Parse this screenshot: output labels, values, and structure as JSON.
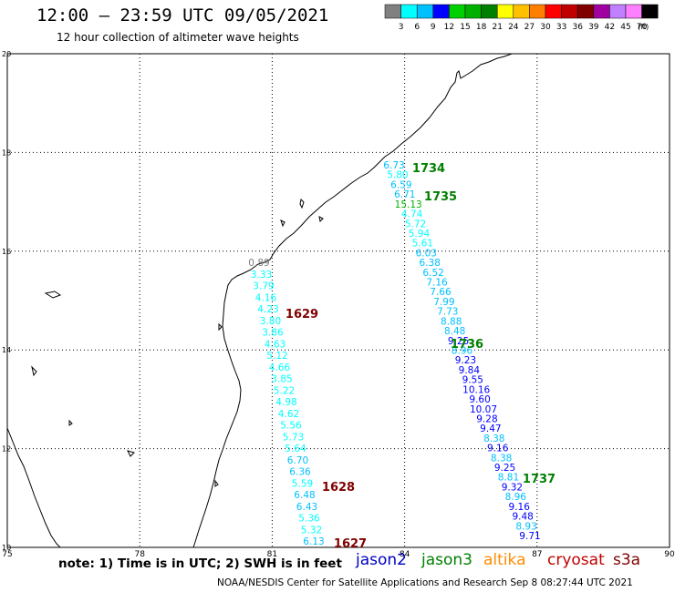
{
  "header": {
    "title": "12:00 – 23:59 UTC 09/05/2021",
    "subtitle": "12 hour collection of altimeter wave heights"
  },
  "legend": {
    "unit": "(ft)",
    "bins": [
      {
        "label": "3",
        "color": "#808080"
      },
      {
        "label": "6",
        "color": "#00ffff"
      },
      {
        "label": "9",
        "color": "#00c0ff"
      },
      {
        "label": "12",
        "color": "#0000ff"
      },
      {
        "label": "15",
        "color": "#00d000"
      },
      {
        "label": "18",
        "color": "#00b000"
      },
      {
        "label": "21",
        "color": "#008000"
      },
      {
        "label": "24",
        "color": "#ffff00"
      },
      {
        "label": "27",
        "color": "#ffc000"
      },
      {
        "label": "30",
        "color": "#ff8000"
      },
      {
        "label": "33",
        "color": "#ff0000"
      },
      {
        "label": "36",
        "color": "#c00000"
      },
      {
        "label": "39",
        "color": "#800000"
      },
      {
        "label": "42",
        "color": "#a000a0"
      },
      {
        "label": "45",
        "color": "#c080ff"
      },
      {
        "label": "70",
        "color": "#ff80ff"
      },
      {
        "label": "",
        "color": "#000000"
      }
    ]
  },
  "axes": {
    "lon_ticks": [
      "75",
      "78",
      "81",
      "84",
      "87",
      "90"
    ],
    "lat_ticks": [
      "20",
      "18",
      "16",
      "14",
      "12",
      "10"
    ]
  },
  "tracks": [
    {
      "points": [
        {
          "v": "6.73",
          "c": "#00c0ff"
        },
        {
          "v": "5.80",
          "c": "#00ffff"
        },
        {
          "v": "6.59",
          "c": "#00c0ff"
        },
        {
          "v": "6.71",
          "c": "#00c0ff"
        },
        {
          "v": "15.13",
          "c": "#00b000"
        },
        {
          "v": "4.74",
          "c": "#00ffff"
        },
        {
          "v": "5.72",
          "c": "#00ffff"
        },
        {
          "v": "5.94",
          "c": "#00ffff"
        },
        {
          "v": "5.61",
          "c": "#00ffff"
        },
        {
          "v": "6.03",
          "c": "#00c0ff"
        },
        {
          "v": "6.38",
          "c": "#00c0ff"
        },
        {
          "v": "6.52",
          "c": "#00c0ff"
        },
        {
          "v": "7.16",
          "c": "#00c0ff"
        },
        {
          "v": "7.66",
          "c": "#00c0ff"
        },
        {
          "v": "7.99",
          "c": "#00c0ff"
        },
        {
          "v": "7.73",
          "c": "#00c0ff"
        },
        {
          "v": "8.88",
          "c": "#00c0ff"
        },
        {
          "v": "8.48",
          "c": "#00c0ff"
        },
        {
          "v": "9.25",
          "c": "#0000ff"
        },
        {
          "v": "8.96",
          "c": "#00c0ff"
        },
        {
          "v": "9.23",
          "c": "#0000ff"
        },
        {
          "v": "9.84",
          "c": "#0000ff"
        },
        {
          "v": "9.55",
          "c": "#0000ff"
        },
        {
          "v": "10.16",
          "c": "#0000ff"
        },
        {
          "v": "9.60",
          "c": "#0000ff"
        },
        {
          "v": "10.07",
          "c": "#0000ff"
        },
        {
          "v": "9.28",
          "c": "#0000ff"
        },
        {
          "v": "9.47",
          "c": "#0000ff"
        },
        {
          "v": "8.38",
          "c": "#00c0ff"
        },
        {
          "v": "9.16",
          "c": "#0000ff"
        },
        {
          "v": "8.38",
          "c": "#00c0ff"
        },
        {
          "v": "9.25",
          "c": "#0000ff"
        },
        {
          "v": "8.81",
          "c": "#00c0ff"
        },
        {
          "v": "9.32",
          "c": "#0000ff"
        },
        {
          "v": "8.96",
          "c": "#00c0ff"
        },
        {
          "v": "9.16",
          "c": "#0000ff"
        },
        {
          "v": "9.48",
          "c": "#0000ff"
        },
        {
          "v": "8.93",
          "c": "#00c0ff"
        },
        {
          "v": "9.71",
          "c": "#0000ff"
        }
      ]
    },
    {
      "points": [
        {
          "v": "0.89",
          "c": "#808080"
        },
        {
          "v": "3.33",
          "c": "#00ffff"
        },
        {
          "v": "3.79",
          "c": "#00ffff"
        },
        {
          "v": "4.16",
          "c": "#00ffff"
        },
        {
          "v": "4.23",
          "c": "#00ffff"
        },
        {
          "v": "3.80",
          "c": "#00ffff"
        },
        {
          "v": "3.86",
          "c": "#00ffff"
        },
        {
          "v": "4.63",
          "c": "#00ffff"
        },
        {
          "v": "5.12",
          "c": "#00ffff"
        },
        {
          "v": "4.66",
          "c": "#00ffff"
        },
        {
          "v": "3.85",
          "c": "#00ffff"
        },
        {
          "v": "5.22",
          "c": "#00ffff"
        },
        {
          "v": "4.98",
          "c": "#00ffff"
        },
        {
          "v": "4.62",
          "c": "#00ffff"
        },
        {
          "v": "5.56",
          "c": "#00ffff"
        },
        {
          "v": "5.73",
          "c": "#00ffff"
        },
        {
          "v": "5.64",
          "c": "#00ffff"
        },
        {
          "v": "6.70",
          "c": "#00c0ff"
        },
        {
          "v": "6.36",
          "c": "#00c0ff"
        },
        {
          "v": "5.59",
          "c": "#00ffff"
        },
        {
          "v": "6.48",
          "c": "#00c0ff"
        },
        {
          "v": "6.43",
          "c": "#00c0ff"
        },
        {
          "v": "5.36",
          "c": "#00ffff"
        },
        {
          "v": "5.32",
          "c": "#00ffff"
        },
        {
          "v": "6.13",
          "c": "#00c0ff"
        }
      ]
    }
  ],
  "time_labels": [
    {
      "text": "1734",
      "color": "#008000"
    },
    {
      "text": "1735",
      "color": "#008000"
    },
    {
      "text": "1736",
      "color": "#008000"
    },
    {
      "text": "1737",
      "color": "#008000"
    },
    {
      "text": "1629",
      "color": "#800000"
    },
    {
      "text": "1628",
      "color": "#800000"
    },
    {
      "text": "1627",
      "color": "#800000"
    }
  ],
  "satellites": [
    {
      "name": "jason2",
      "color": "#0000c0"
    },
    {
      "name": "jason3",
      "color": "#008000"
    },
    {
      "name": "altika",
      "color": "#ff8c00"
    },
    {
      "name": "cryosat",
      "color": "#c00000"
    },
    {
      "name": "s3a",
      "color": "#800000"
    }
  ],
  "footer": {
    "note": "note:  1) Time is in UTC;  2) SWH is in feet",
    "credit": "NOAA/NESDIS Center for Satellite Applications and Research     Sep  8 08:27:44 UTC 2021"
  }
}
